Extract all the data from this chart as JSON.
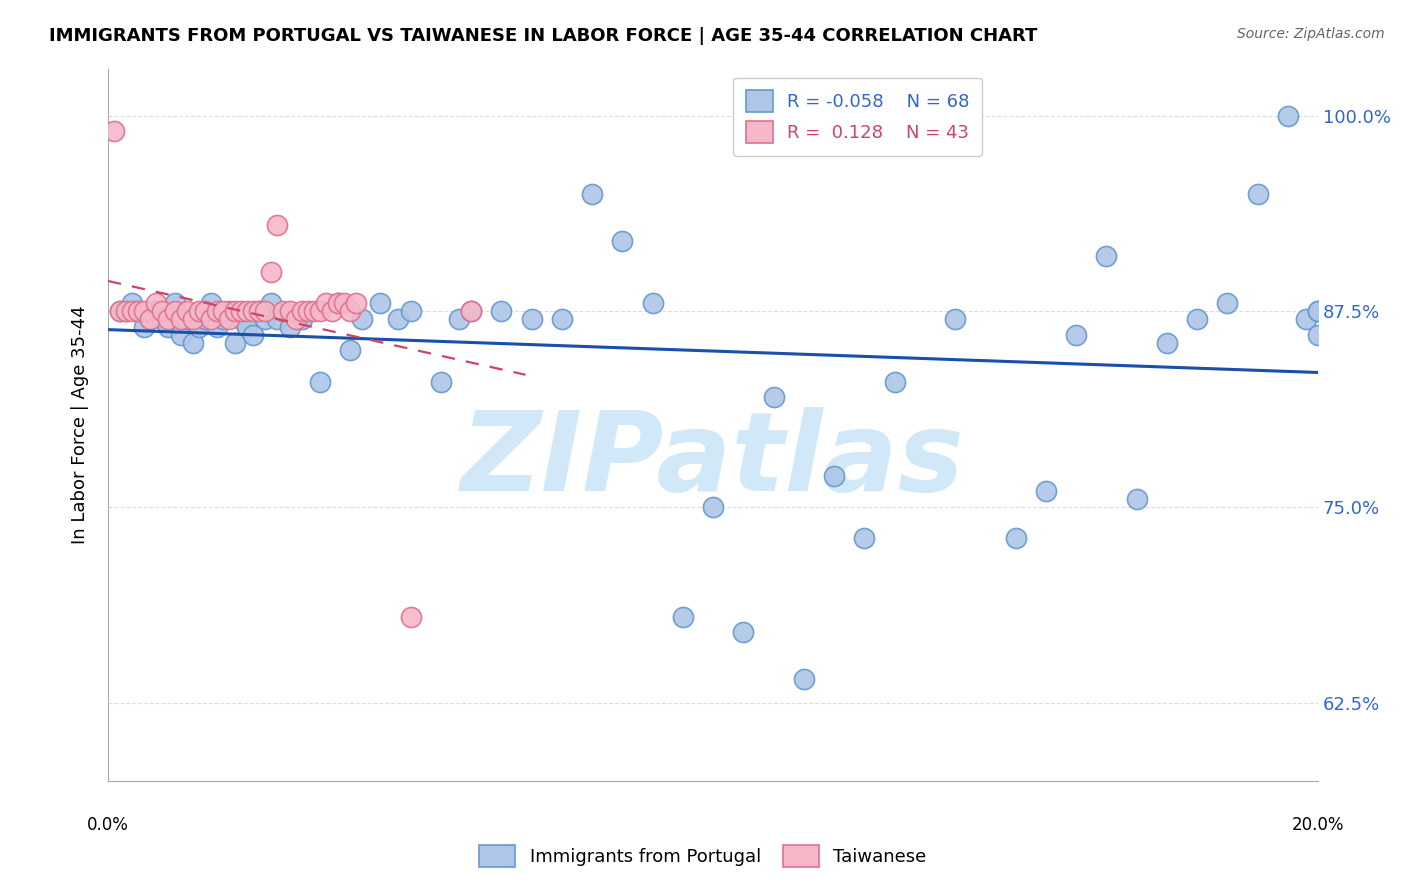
{
  "title": "IMMIGRANTS FROM PORTUGAL VS TAIWANESE IN LABOR FORCE | AGE 35-44 CORRELATION CHART",
  "source": "Source: ZipAtlas.com",
  "ylabel": "In Labor Force | Age 35-44",
  "yticks": [
    0.625,
    0.75,
    0.875,
    1.0
  ],
  "ytick_labels": [
    "62.5%",
    "75.0%",
    "87.5%",
    "100.0%"
  ],
  "xlim": [
    0.0,
    0.2
  ],
  "ylim": [
    0.575,
    1.03
  ],
  "blue_x": [
    0.002,
    0.003,
    0.004,
    0.005,
    0.006,
    0.007,
    0.008,
    0.009,
    0.01,
    0.011,
    0.012,
    0.013,
    0.014,
    0.015,
    0.016,
    0.017,
    0.018,
    0.019,
    0.02,
    0.021,
    0.022,
    0.023,
    0.024,
    0.025,
    0.026,
    0.027,
    0.028,
    0.03,
    0.032,
    0.035,
    0.038,
    0.04,
    0.042,
    0.045,
    0.048,
    0.05,
    0.055,
    0.058,
    0.06,
    0.065,
    0.07,
    0.075,
    0.08,
    0.085,
    0.09,
    0.095,
    0.1,
    0.105,
    0.11,
    0.115,
    0.12,
    0.125,
    0.13,
    0.14,
    0.15,
    0.155,
    0.16,
    0.165,
    0.17,
    0.175,
    0.18,
    0.185,
    0.19,
    0.195,
    0.198,
    0.2,
    0.2,
    0.2
  ],
  "blue_y": [
    0.875,
    0.875,
    0.88,
    0.875,
    0.865,
    0.87,
    0.875,
    0.87,
    0.865,
    0.88,
    0.86,
    0.87,
    0.855,
    0.865,
    0.87,
    0.88,
    0.865,
    0.87,
    0.875,
    0.855,
    0.87,
    0.865,
    0.86,
    0.875,
    0.87,
    0.88,
    0.87,
    0.865,
    0.87,
    0.83,
    0.88,
    0.85,
    0.87,
    0.88,
    0.87,
    0.875,
    0.83,
    0.87,
    0.875,
    0.875,
    0.87,
    0.87,
    0.95,
    0.92,
    0.88,
    0.68,
    0.75,
    0.67,
    0.82,
    0.64,
    0.77,
    0.73,
    0.83,
    0.87,
    0.73,
    0.76,
    0.86,
    0.91,
    0.755,
    0.855,
    0.87,
    0.88,
    0.95,
    1.0,
    0.87,
    0.875,
    0.875,
    0.86
  ],
  "pink_x": [
    0.001,
    0.002,
    0.003,
    0.004,
    0.005,
    0.006,
    0.007,
    0.008,
    0.009,
    0.01,
    0.011,
    0.012,
    0.013,
    0.014,
    0.015,
    0.016,
    0.017,
    0.018,
    0.019,
    0.02,
    0.021,
    0.022,
    0.023,
    0.024,
    0.025,
    0.026,
    0.027,
    0.028,
    0.029,
    0.03,
    0.031,
    0.032,
    0.033,
    0.034,
    0.035,
    0.036,
    0.037,
    0.038,
    0.039,
    0.04,
    0.041,
    0.05,
    0.06
  ],
  "pink_y": [
    0.99,
    0.875,
    0.875,
    0.875,
    0.875,
    0.875,
    0.87,
    0.88,
    0.875,
    0.87,
    0.875,
    0.87,
    0.875,
    0.87,
    0.875,
    0.875,
    0.87,
    0.875,
    0.875,
    0.87,
    0.875,
    0.875,
    0.875,
    0.875,
    0.875,
    0.875,
    0.9,
    0.93,
    0.875,
    0.875,
    0.87,
    0.875,
    0.875,
    0.875,
    0.875,
    0.88,
    0.875,
    0.88,
    0.88,
    0.875,
    0.88,
    0.68,
    0.875
  ],
  "blue_color": "#aec6e8",
  "blue_edge": "#6699cc",
  "pink_color": "#f4b8c8",
  "pink_edge": "#e07090",
  "trendline_blue_color": "#1a4faa",
  "trendline_pink_color": "#cc4466",
  "watermark_text": "ZIPatlas",
  "watermark_color": "#d0e8f8",
  "background_color": "#ffffff",
  "grid_color": "#dddddd"
}
